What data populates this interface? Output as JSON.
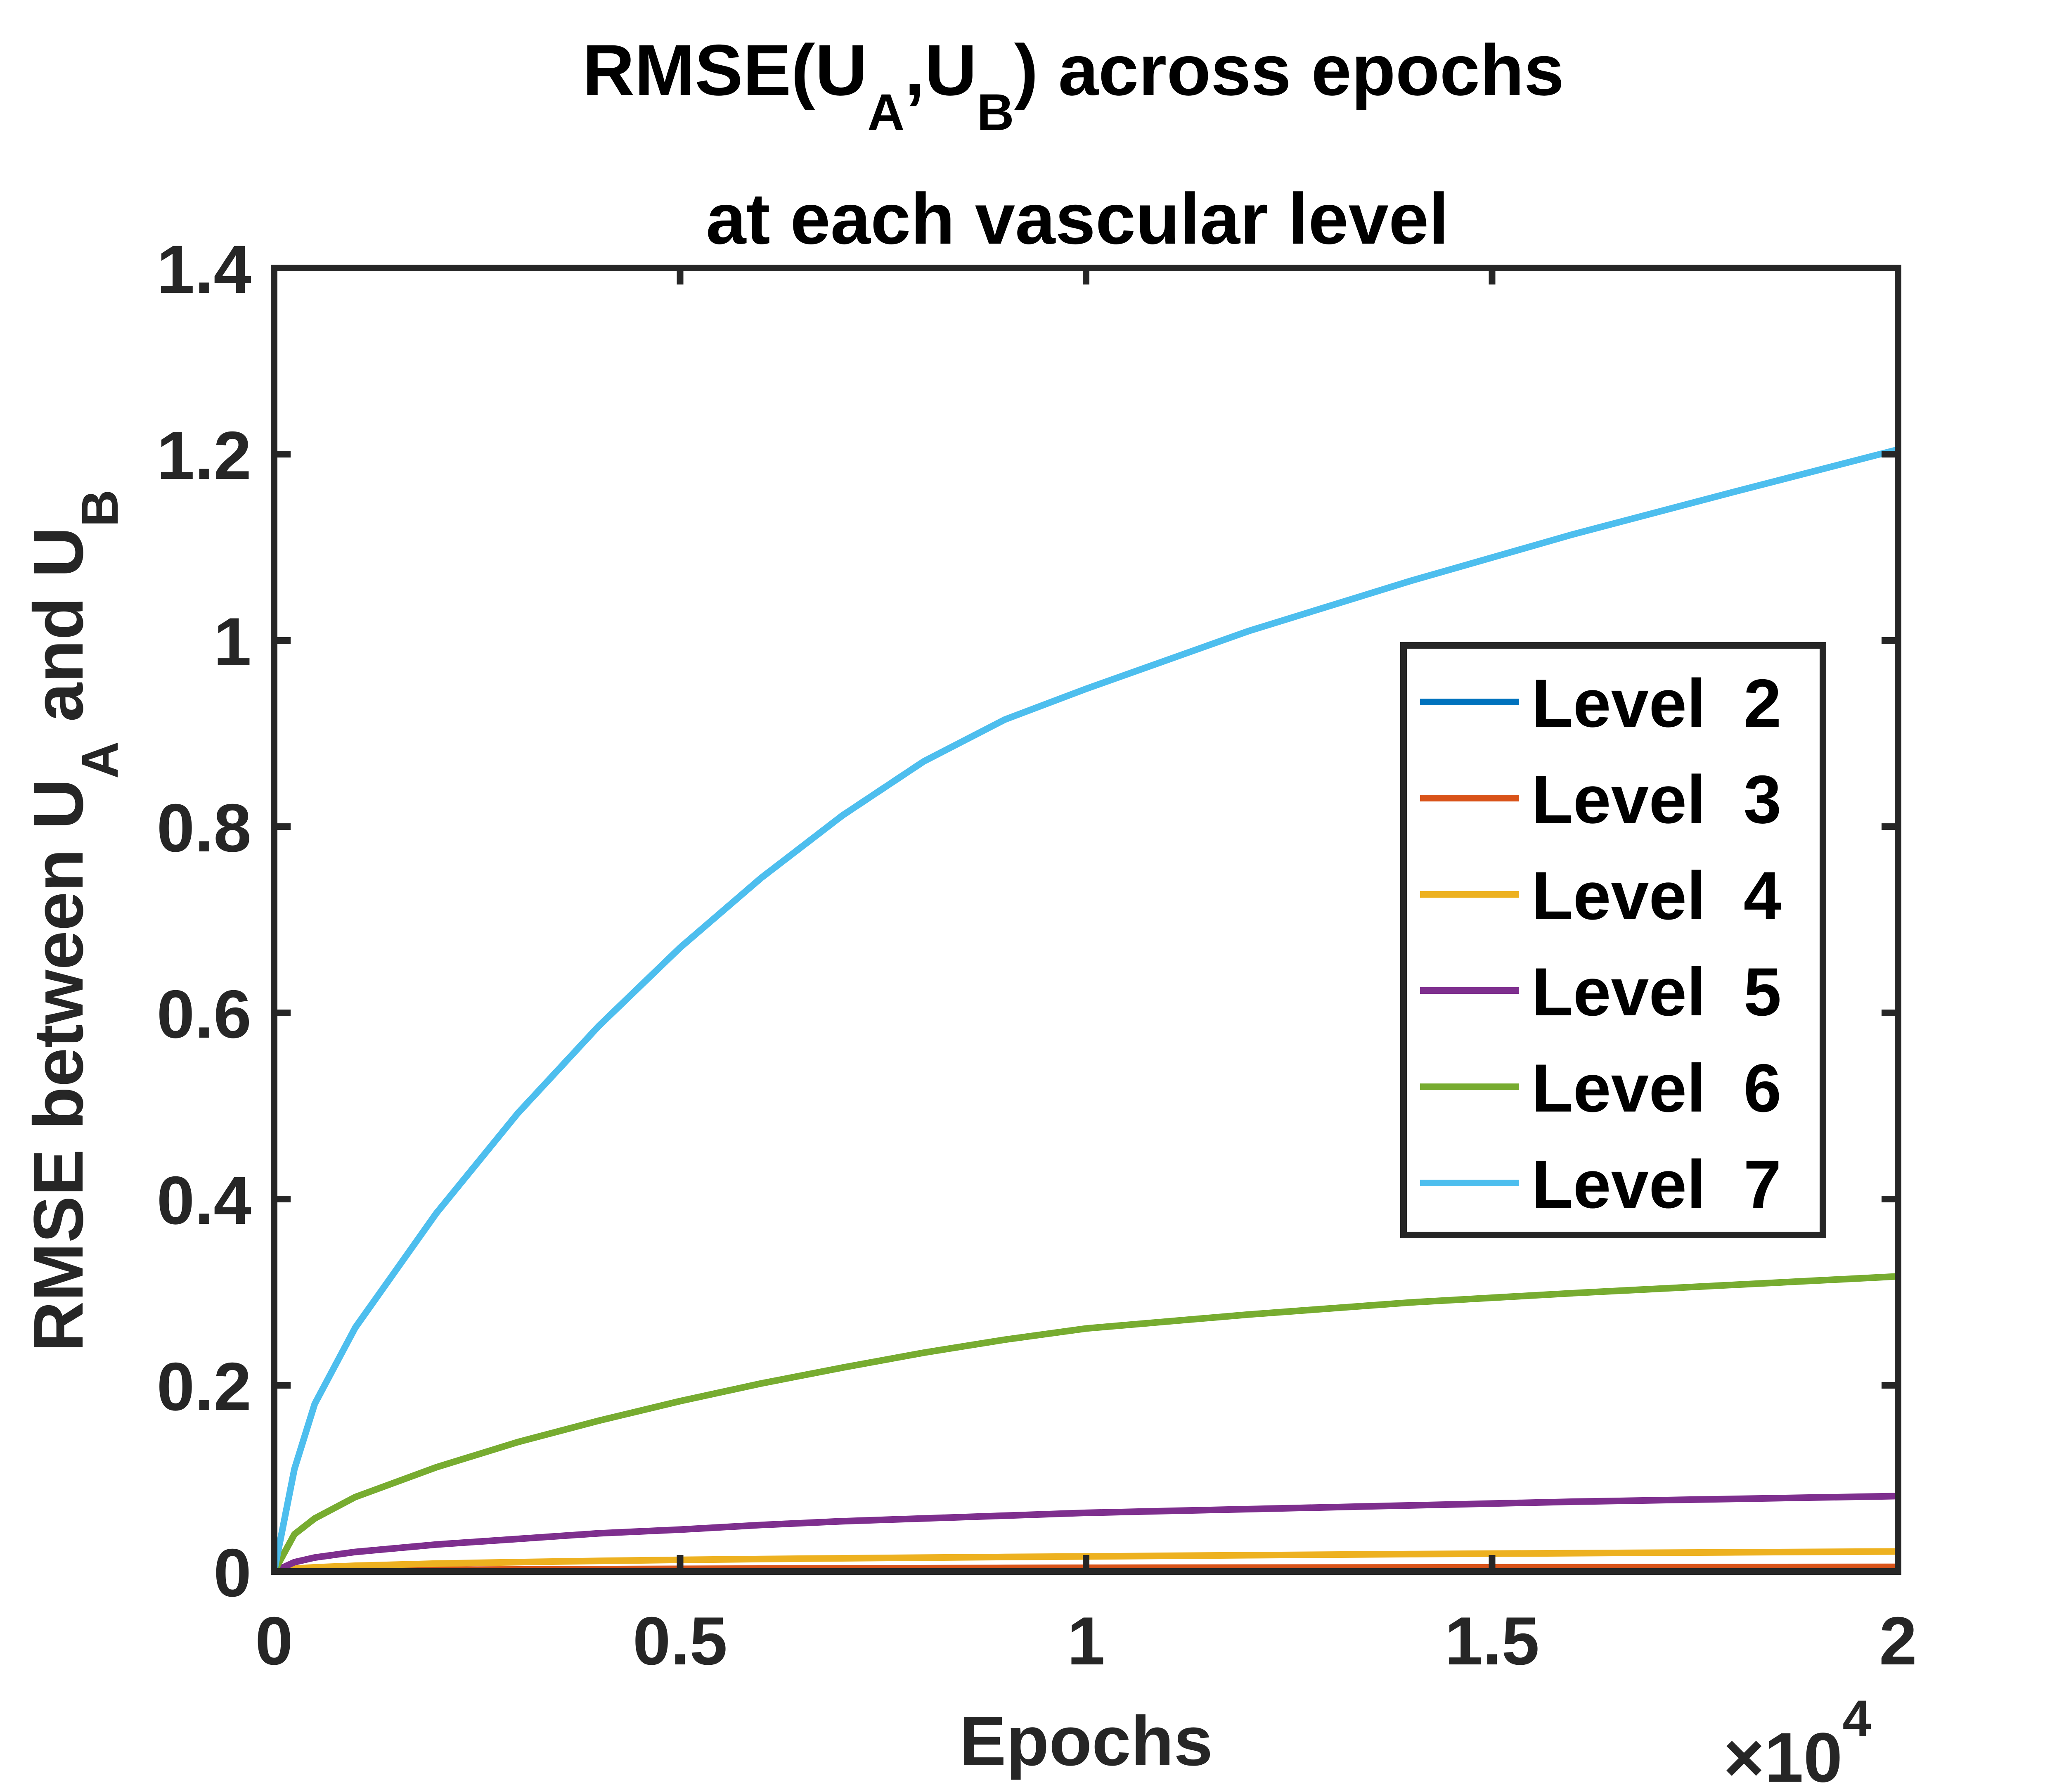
{
  "chart_data": {
    "type": "line",
    "title": {
      "line1": {
        "pre": "RMSE(U",
        "sub1": "A",
        "mid": ",U",
        "sub2": "B",
        "post": ") across epochs"
      },
      "line2": "at each vascular level"
    },
    "xlabel": "Epochs",
    "ylabel": {
      "pre": "RMSE between U",
      "sub1": "A",
      "mid": " and U",
      "sub2": "B"
    },
    "x_exponent": {
      "prefix": "×10",
      "power": "4"
    },
    "xlim": [
      0,
      20000
    ],
    "ylim": [
      0,
      1.4
    ],
    "x_ticks": [
      0,
      5000,
      10000,
      15000,
      20000
    ],
    "x_tick_labels": [
      "0",
      "0.5",
      "1",
      "1.5",
      "2"
    ],
    "y_ticks": [
      0,
      0.2,
      0.4,
      0.6,
      0.8,
      1.0,
      1.2,
      1.4
    ],
    "y_tick_labels": [
      "0",
      "0.2",
      "0.4",
      "0.6",
      "0.8",
      "1",
      "1.2",
      "1.4"
    ],
    "grid": false,
    "legend_position": "right",
    "x": [
      0,
      250,
      500,
      1000,
      2000,
      3000,
      4000,
      5000,
      6000,
      7000,
      8000,
      9000,
      10000,
      12000,
      14000,
      16000,
      18000,
      20000
    ],
    "series": [
      {
        "name": "Level  2",
        "color": "#0072BD",
        "values": [
          0,
          0.0002,
          0.0003,
          0.0004,
          0.0006,
          0.0007,
          0.0008,
          0.0009,
          0.0009,
          0.001,
          0.001,
          0.0011,
          0.0011,
          0.0012,
          0.0012,
          0.0013,
          0.0013,
          0.0013
        ]
      },
      {
        "name": "Level  3",
        "color": "#D95319",
        "values": [
          0,
          0.0006,
          0.0009,
          0.0013,
          0.0018,
          0.0022,
          0.0026,
          0.0029,
          0.0031,
          0.0034,
          0.0036,
          0.0038,
          0.004,
          0.0042,
          0.0044,
          0.0046,
          0.0048,
          0.005
        ]
      },
      {
        "name": "Level  4",
        "color": "#EDB120",
        "values": [
          0,
          0.003,
          0.0045,
          0.0062,
          0.0085,
          0.0101,
          0.0114,
          0.0125,
          0.0134,
          0.0142,
          0.0149,
          0.0156,
          0.0162,
          0.0175,
          0.0187,
          0.0197,
          0.0206,
          0.0215
        ]
      },
      {
        "name": "Level  5",
        "color": "#7E2F8E",
        "values": [
          0,
          0.01,
          0.015,
          0.021,
          0.029,
          0.035,
          0.041,
          0.045,
          0.05,
          0.054,
          0.057,
          0.06,
          0.063,
          0.067,
          0.071,
          0.075,
          0.078,
          0.081
        ]
      },
      {
        "name": "Level  6",
        "color": "#77AC30",
        "values": [
          0,
          0.04,
          0.057,
          0.08,
          0.112,
          0.139,
          0.162,
          0.183,
          0.202,
          0.219,
          0.235,
          0.249,
          0.261,
          0.276,
          0.289,
          0.299,
          0.308,
          0.317
        ]
      },
      {
        "name": "Level  7",
        "color": "#4DBEEE",
        "values": [
          0,
          0.11,
          0.18,
          0.262,
          0.385,
          0.492,
          0.586,
          0.67,
          0.745,
          0.812,
          0.87,
          0.915,
          0.948,
          1.01,
          1.064,
          1.114,
          1.16,
          1.205
        ]
      }
    ]
  }
}
